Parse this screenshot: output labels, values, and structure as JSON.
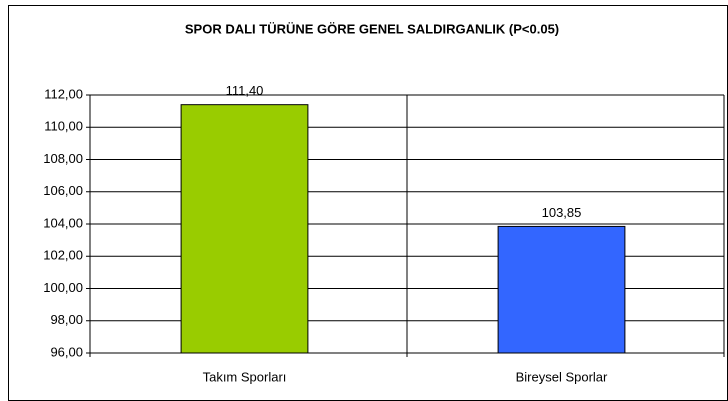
{
  "chart_data": {
    "type": "bar",
    "title": "SPOR DALI TÜRÜNE GÖRE GENEL SALDIRGANLIK (P<0.05)",
    "categories": [
      "Takım Sporları",
      "Bireysel Sporlar"
    ],
    "values": [
      111.4,
      103.85
    ],
    "value_labels": [
      "111,40",
      "103,85"
    ],
    "colors": [
      "#99cc00",
      "#3366ff"
    ],
    "ylim": [
      96,
      112
    ],
    "yticks": [
      {
        "value": 96,
        "label": "96,00"
      },
      {
        "value": 98,
        "label": "98,00"
      },
      {
        "value": 100,
        "label": "100,00"
      },
      {
        "value": 102,
        "label": "102,00"
      },
      {
        "value": 104,
        "label": "104,00"
      },
      {
        "value": 106,
        "label": "106,00"
      },
      {
        "value": 108,
        "label": "108,00"
      },
      {
        "value": 110,
        "label": "110,00"
      },
      {
        "value": 112,
        "label": "112,00"
      }
    ],
    "grid": true
  }
}
